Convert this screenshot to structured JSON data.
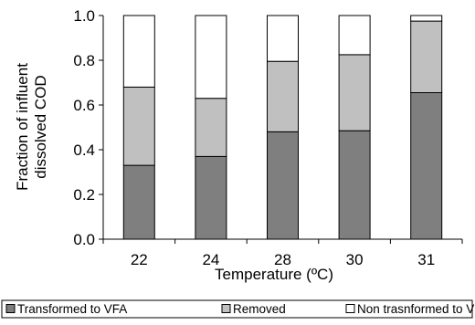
{
  "chart_data": {
    "type": "bar",
    "stacked": true,
    "normalized": true,
    "categories": [
      "22",
      "24",
      "28",
      "30",
      "31"
    ],
    "series": [
      {
        "name": "Transformed to VFA",
        "values": [
          0.33,
          0.37,
          0.48,
          0.485,
          0.655
        ],
        "color": "#7f7f7f"
      },
      {
        "name": "Removed",
        "values": [
          0.35,
          0.26,
          0.315,
          0.34,
          0.32
        ],
        "color": "#c0c0c0"
      },
      {
        "name": "Non trasnformed to VFA",
        "values": [
          0.32,
          0.37,
          0.205,
          0.175,
          0.025
        ],
        "color": "#ffffff"
      }
    ],
    "xlabel": "Temperature (ºC)",
    "ylabel_lines": [
      "Fraction of influent",
      "dissolved COD"
    ],
    "ylim": [
      0,
      1.0
    ],
    "yticks": [
      "0.0",
      "0.2",
      "0.4",
      "0.6",
      "0.8",
      "1.0"
    ],
    "grid": false,
    "legend_position": "bottom"
  }
}
